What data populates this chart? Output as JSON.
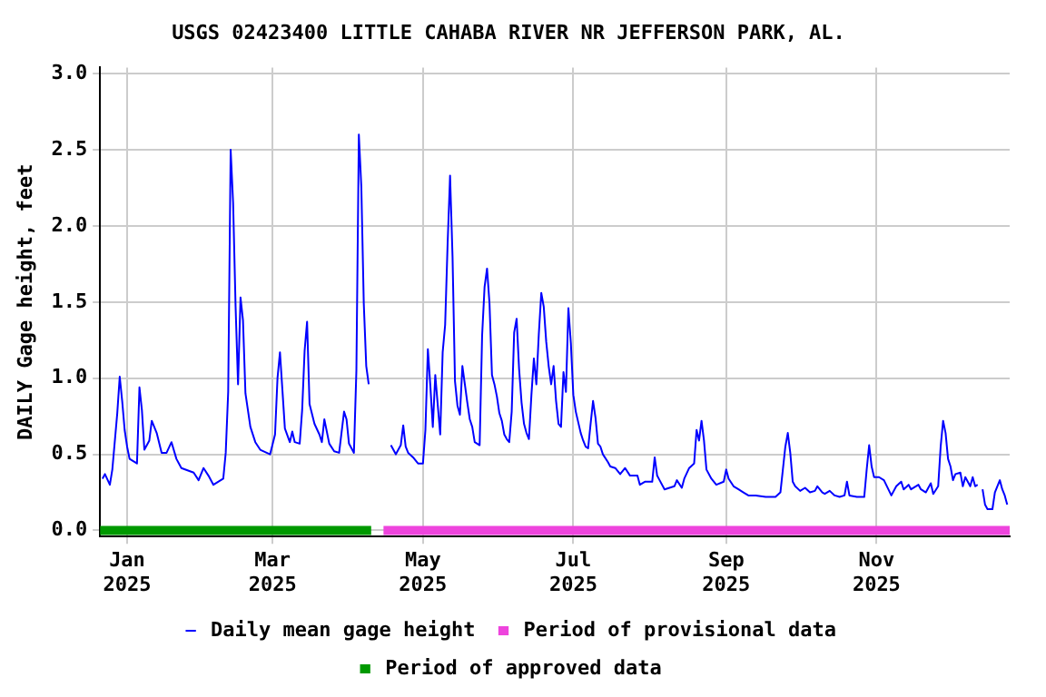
{
  "chart_data": {
    "type": "line",
    "title": "USGS 02423400 LITTLE CAHABA RIVER NR JEFFERSON PARK, AL.",
    "ylabel": "DAILY Gage height, feet",
    "x": [
      "2024-12-22",
      "2024-12-23",
      "2024-12-25",
      "2024-12-26",
      "2024-12-28",
      "2024-12-29",
      "2024-12-30",
      "2024-12-31",
      "2025-01-01",
      "2025-01-02",
      "2025-01-05",
      "2025-01-06",
      "2025-01-07",
      "2025-01-08",
      "2025-01-10",
      "2025-01-11",
      "2025-01-13",
      "2025-01-15",
      "2025-01-17",
      "2025-01-19",
      "2025-01-21",
      "2025-01-23",
      "2025-01-28",
      "2025-01-30",
      "2025-02-01",
      "2025-02-03",
      "2025-02-05",
      "2025-02-09",
      "2025-02-10",
      "2025-02-11",
      "2025-02-12",
      "2025-02-13",
      "2025-02-14",
      "2025-02-15",
      "2025-02-16",
      "2025-02-17",
      "2025-02-18",
      "2025-02-20",
      "2025-02-22",
      "2025-02-24",
      "2025-02-28",
      "2025-03-02",
      "2025-03-03",
      "2025-03-04",
      "2025-03-05",
      "2025-03-06",
      "2025-03-08",
      "2025-03-09",
      "2025-03-10",
      "2025-03-12",
      "2025-03-13",
      "2025-03-14",
      "2025-03-15",
      "2025-03-16",
      "2025-03-18",
      "2025-03-20",
      "2025-03-21",
      "2025-03-22",
      "2025-03-24",
      "2025-03-26",
      "2025-03-28",
      "2025-03-30",
      "2025-03-31",
      "2025-04-01",
      "2025-04-03",
      "2025-04-04",
      "2025-04-05",
      "2025-04-06",
      "2025-04-07",
      "2025-04-08",
      "2025-04-09",
      "2025-04-12",
      "2025-04-18",
      "2025-04-20",
      "2025-04-22",
      "2025-04-23",
      "2025-04-24",
      "2025-04-25",
      "2025-04-27",
      "2025-04-29",
      "2025-05-01",
      "2025-05-02",
      "2025-05-03",
      "2025-05-04",
      "2025-05-05",
      "2025-05-06",
      "2025-05-08",
      "2025-05-09",
      "2025-05-10",
      "2025-05-11",
      "2025-05-12",
      "2025-05-13",
      "2025-05-14",
      "2025-05-15",
      "2025-05-16",
      "2025-05-17",
      "2025-05-18",
      "2025-05-19",
      "2025-05-20",
      "2025-05-21",
      "2025-05-22",
      "2025-05-23",
      "2025-05-24",
      "2025-05-25",
      "2025-05-26",
      "2025-05-27",
      "2025-05-28",
      "2025-05-29",
      "2025-05-30",
      "2025-05-31",
      "2025-06-01",
      "2025-06-02",
      "2025-06-03",
      "2025-06-04",
      "2025-06-05",
      "2025-06-06",
      "2025-06-07",
      "2025-06-08",
      "2025-06-09",
      "2025-06-10",
      "2025-06-11",
      "2025-06-12",
      "2025-06-13",
      "2025-06-14",
      "2025-06-15",
      "2025-06-16",
      "2025-06-17",
      "2025-06-18",
      "2025-06-19",
      "2025-06-20",
      "2025-06-21",
      "2025-06-22",
      "2025-06-23",
      "2025-06-24",
      "2025-06-25",
      "2025-06-26",
      "2025-06-27",
      "2025-06-28",
      "2025-06-29",
      "2025-06-30",
      "2025-07-01",
      "2025-07-02",
      "2025-07-03",
      "2025-07-04",
      "2025-07-05",
      "2025-07-06",
      "2025-07-07",
      "2025-07-08",
      "2025-07-09",
      "2025-07-10",
      "2025-07-11",
      "2025-07-12",
      "2025-07-13",
      "2025-07-15",
      "2025-07-16",
      "2025-07-18",
      "2025-07-20",
      "2025-07-22",
      "2025-07-24",
      "2025-07-27",
      "2025-07-28",
      "2025-07-30",
      "2025-08-02",
      "2025-08-03",
      "2025-08-04",
      "2025-08-05",
      "2025-08-07",
      "2025-08-09",
      "2025-08-11",
      "2025-08-12",
      "2025-08-14",
      "2025-08-15",
      "2025-08-17",
      "2025-08-19",
      "2025-08-20",
      "2025-08-21",
      "2025-08-22",
      "2025-08-23",
      "2025-08-24",
      "2025-08-26",
      "2025-08-28",
      "2025-08-31",
      "2025-09-01",
      "2025-09-02",
      "2025-09-04",
      "2025-09-06",
      "2025-09-08",
      "2025-09-10",
      "2025-09-13",
      "2025-09-17",
      "2025-09-21",
      "2025-09-23",
      "2025-09-24",
      "2025-09-25",
      "2025-09-26",
      "2025-09-27",
      "2025-09-28",
      "2025-09-29",
      "2025-10-01",
      "2025-10-03",
      "2025-10-05",
      "2025-10-07",
      "2025-10-08",
      "2025-10-10",
      "2025-10-11",
      "2025-10-13",
      "2025-10-15",
      "2025-10-17",
      "2025-10-19",
      "2025-10-20",
      "2025-10-21",
      "2025-10-24",
      "2025-10-27",
      "2025-10-28",
      "2025-10-29",
      "2025-10-30",
      "2025-10-31",
      "2025-11-02",
      "2025-11-04",
      "2025-11-07",
      "2025-11-09",
      "2025-11-11",
      "2025-11-12",
      "2025-11-14",
      "2025-11-15",
      "2025-11-18",
      "2025-11-19",
      "2025-11-21",
      "2025-11-23",
      "2025-11-24",
      "2025-11-26",
      "2025-11-27",
      "2025-11-28",
      "2025-11-29",
      "2025-11-30",
      "2025-12-01",
      "2025-12-02",
      "2025-12-03",
      "2025-12-05",
      "2025-12-06",
      "2025-12-07",
      "2025-12-09",
      "2025-12-10",
      "2025-12-11",
      "2025-12-12",
      "2025-12-13",
      "2025-12-14",
      "2025-12-15",
      "2025-12-16",
      "2025-12-18",
      "2025-12-19",
      "2025-12-21",
      "2025-12-22",
      "2025-12-23",
      "2025-12-24"
    ],
    "series": [
      {
        "name": "Daily mean gage height",
        "color": "#0000ff",
        "values": [
          0.34,
          0.37,
          0.3,
          0.4,
          0.77,
          1.01,
          0.85,
          0.66,
          0.55,
          0.47,
          0.44,
          0.94,
          0.79,
          0.53,
          0.59,
          0.72,
          0.64,
          0.51,
          0.51,
          0.58,
          0.47,
          0.41,
          0.38,
          0.33,
          0.41,
          0.36,
          0.3,
          0.34,
          0.51,
          0.91,
          2.5,
          2.15,
          1.47,
          0.96,
          1.53,
          1.38,
          0.9,
          0.68,
          0.58,
          0.53,
          0.5,
          0.63,
          1.0,
          1.17,
          0.92,
          0.67,
          0.58,
          0.65,
          0.58,
          0.57,
          0.79,
          1.18,
          1.37,
          0.83,
          0.7,
          0.63,
          0.58,
          0.73,
          0.57,
          0.52,
          0.51,
          0.78,
          0.73,
          0.57,
          0.51,
          1.05,
          2.6,
          2.26,
          1.49,
          1.08,
          0.96,
          null,
          0.56,
          0.5,
          0.56,
          0.69,
          0.55,
          0.51,
          0.48,
          0.44,
          0.44,
          0.66,
          1.19,
          0.95,
          0.68,
          1.02,
          0.63,
          1.17,
          1.35,
          1.88,
          2.33,
          1.8,
          0.98,
          0.82,
          0.76,
          1.08,
          0.96,
          0.84,
          0.73,
          0.68,
          0.58,
          0.57,
          0.56,
          1.28,
          1.6,
          1.72,
          1.49,
          1.02,
          0.96,
          0.88,
          0.77,
          0.72,
          0.63,
          0.6,
          0.58,
          0.78,
          1.3,
          1.39,
          1.06,
          0.84,
          0.7,
          0.64,
          0.6,
          0.89,
          1.13,
          0.96,
          1.29,
          1.56,
          1.47,
          1.24,
          1.08,
          0.96,
          1.08,
          0.85,
          0.7,
          0.68,
          1.04,
          0.91,
          1.46,
          1.23,
          0.89,
          0.78,
          0.71,
          0.64,
          0.59,
          0.55,
          0.54,
          0.7,
          0.85,
          0.74,
          0.57,
          0.55,
          0.5,
          0.45,
          0.42,
          0.41,
          0.37,
          0.41,
          0.36,
          0.36,
          0.3,
          0.32,
          0.32,
          0.48,
          0.36,
          0.33,
          0.27,
          0.28,
          0.29,
          0.33,
          0.28,
          0.34,
          0.41,
          0.44,
          0.66,
          0.59,
          0.72,
          0.59,
          0.4,
          0.34,
          0.3,
          0.32,
          0.4,
          0.34,
          0.29,
          0.27,
          0.25,
          0.23,
          0.23,
          0.22,
          0.22,
          0.25,
          0.4,
          0.55,
          0.64,
          0.51,
          0.32,
          0.29,
          0.26,
          0.28,
          0.25,
          0.26,
          0.29,
          0.25,
          0.24,
          0.26,
          0.23,
          0.22,
          0.23,
          0.32,
          0.23,
          0.22,
          0.22,
          0.4,
          0.56,
          0.42,
          0.35,
          0.35,
          0.33,
          0.23,
          0.29,
          0.32,
          0.27,
          0.3,
          0.27,
          0.3,
          0.27,
          0.25,
          0.31,
          0.24,
          0.29,
          0.55,
          0.72,
          0.64,
          0.47,
          0.42,
          0.33,
          0.37,
          0.38,
          0.29,
          0.35,
          0.29,
          0.35,
          0.29,
          0.3,
          null,
          0.27,
          0.17,
          0.14,
          0.14,
          0.25,
          0.33,
          0.27,
          0.23,
          0.17
        ]
      },
      {
        "name": "Period of provisional data",
        "color": "#ee44dd",
        "x": [
          "2025-04-15",
          "2025-12-25"
        ],
        "values": [
          0,
          0
        ]
      },
      {
        "name": "Period of approved data",
        "color": "#009900",
        "x": [
          "2024-12-21",
          "2025-04-10"
        ],
        "values": [
          0,
          0
        ]
      }
    ],
    "xlim": [
      "2024-12-21",
      "2025-12-25"
    ],
    "xticks": [
      {
        "value": "2025-01-01",
        "label": "Jan\n2025"
      },
      {
        "value": "2025-03-01",
        "label": "Mar\n2025"
      },
      {
        "value": "2025-05-01",
        "label": "May\n2025"
      },
      {
        "value": "2025-07-01",
        "label": "Jul\n2025"
      },
      {
        "value": "2025-09-01",
        "label": "Sep\n2025"
      },
      {
        "value": "2025-11-01",
        "label": "Nov\n2025"
      }
    ],
    "ylim": [
      -0.04,
      3.04
    ],
    "yticks": [
      {
        "value": 0,
        "label": "0.0"
      },
      {
        "value": 0.5,
        "label": "0.5"
      },
      {
        "value": 1,
        "label": "1.0"
      },
      {
        "value": 1.5,
        "label": "1.5"
      },
      {
        "value": 2,
        "label": "2.0"
      },
      {
        "value": 2.5,
        "label": "2.5"
      },
      {
        "value": 3,
        "label": "3.0"
      }
    ],
    "grid": true,
    "legend": "bottom",
    "line_style": "solid",
    "marker": "none"
  }
}
